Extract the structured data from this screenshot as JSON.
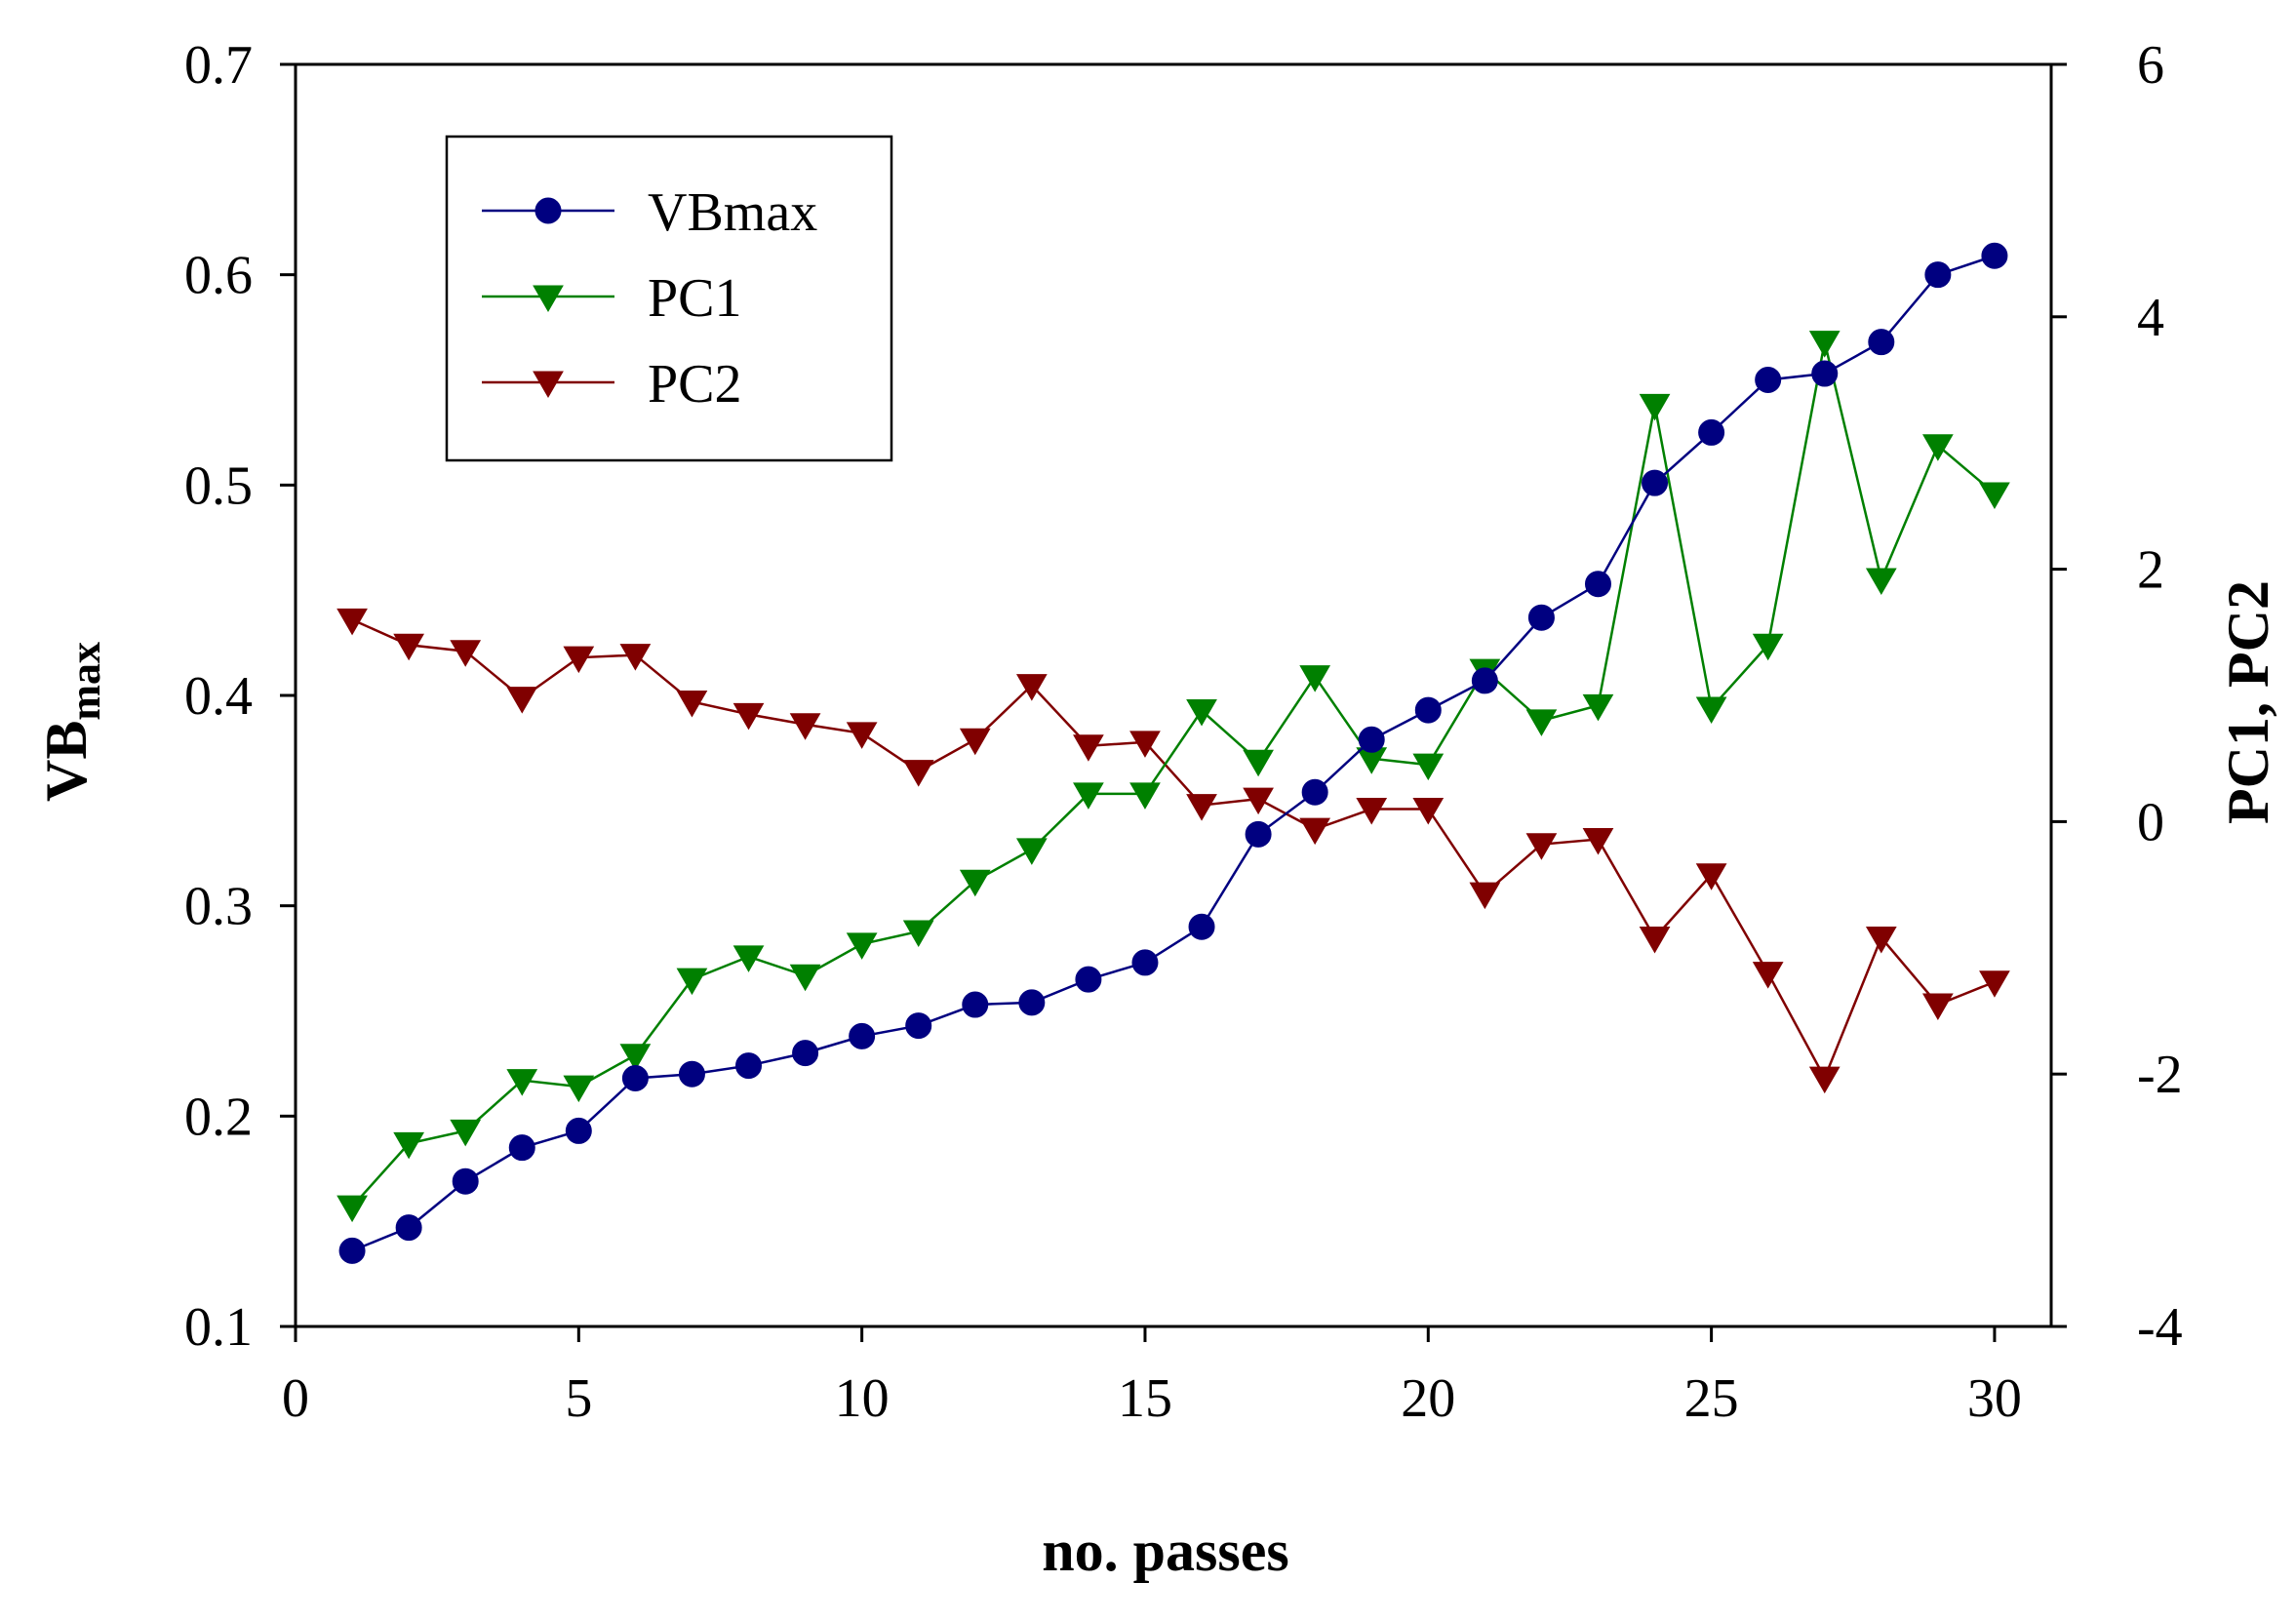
{
  "chart_data": {
    "type": "line",
    "title": "",
    "xlabel": "no. passes",
    "ylabel_main": "VB",
    "ylabel_sub": "max",
    "y2label": "PC1, PC2",
    "xlim": [
      0,
      31
    ],
    "ylim": [
      0.1,
      0.7
    ],
    "y2lim": [
      -4,
      6
    ],
    "x_ticks": [
      "0",
      "5",
      "10",
      "15",
      "20",
      "25",
      "30"
    ],
    "y_ticks": [
      "0.1",
      "0.2",
      "0.3",
      "0.4",
      "0.5",
      "0.6",
      "0.7"
    ],
    "y2_ticks": [
      "-4",
      "-2",
      "0",
      "2",
      "4",
      "6"
    ],
    "legend_position": "top-left",
    "x": [
      1,
      2,
      3,
      4,
      5,
      6,
      7,
      8,
      9,
      10,
      11,
      12,
      13,
      14,
      15,
      16,
      17,
      18,
      19,
      20,
      21,
      22,
      23,
      24,
      25,
      26,
      27,
      28,
      29,
      30
    ],
    "series": [
      {
        "name": "VBmax",
        "axis": "left",
        "marker": "circle",
        "color": "#000080",
        "values": [
          0.136,
          0.147,
          0.169,
          0.185,
          0.193,
          0.218,
          0.22,
          0.224,
          0.23,
          0.238,
          0.243,
          0.253,
          0.254,
          0.265,
          0.273,
          0.29,
          0.334,
          0.354,
          0.379,
          0.393,
          0.407,
          0.437,
          0.453,
          0.501,
          0.525,
          0.55,
          0.553,
          0.568,
          0.6,
          0.609
        ]
      },
      {
        "name": "PC1",
        "axis": "right",
        "marker": "triangle-down",
        "color": "#008000",
        "values": [
          -3.05,
          -2.55,
          -2.45,
          -2.05,
          -2.1,
          -1.85,
          -1.25,
          -1.07,
          -1.22,
          -0.97,
          -0.87,
          -0.47,
          -0.22,
          0.22,
          0.22,
          0.88,
          0.48,
          1.15,
          0.5,
          0.45,
          1.2,
          0.8,
          0.92,
          3.3,
          0.9,
          1.4,
          3.8,
          1.92,
          2.98,
          2.6
        ]
      },
      {
        "name": "PC2",
        "axis": "right",
        "marker": "triangle-down",
        "color": "#800000",
        "values": [
          1.6,
          1.4,
          1.35,
          0.98,
          1.3,
          1.32,
          0.95,
          0.85,
          0.77,
          0.7,
          0.4,
          0.65,
          1.08,
          0.6,
          0.63,
          0.13,
          0.18,
          -0.06,
          0.1,
          0.1,
          -0.57,
          -0.18,
          -0.14,
          -0.92,
          -0.42,
          -1.2,
          -2.03,
          -0.92,
          -1.45,
          -1.27
        ]
      }
    ]
  }
}
